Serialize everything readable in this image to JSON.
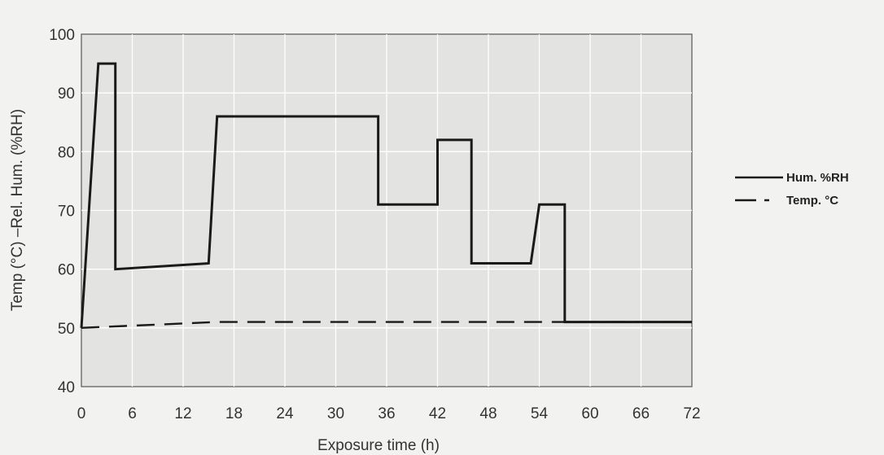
{
  "chart_data": {
    "type": "line",
    "title": "",
    "xlabel": "Exposure time (h)",
    "ylabel": "Temp (°C) –Rel. Hum. (%RH)",
    "xlim": [
      0,
      72
    ],
    "ylim": [
      40,
      100
    ],
    "xticks": [
      0,
      6,
      12,
      18,
      24,
      30,
      36,
      42,
      48,
      54,
      60,
      66,
      72
    ],
    "yticks": [
      40,
      50,
      60,
      70,
      80,
      90,
      100
    ],
    "x_tick_labels": [
      "0",
      "6",
      "12",
      "18",
      "24",
      "30",
      "36",
      "42",
      "48",
      "54",
      "60",
      "66",
      "72"
    ],
    "y_tick_labels": [
      "40",
      "50",
      "60",
      "70",
      "80",
      "90",
      "100"
    ],
    "grid": true,
    "legend_position": "right",
    "series": [
      {
        "name": "Hum. %RH",
        "style": "solid",
        "color": "#1a1a1a",
        "points": [
          [
            0,
            50
          ],
          [
            2,
            95
          ],
          [
            4,
            95
          ],
          [
            4,
            60
          ],
          [
            15,
            61
          ],
          [
            16,
            86
          ],
          [
            35,
            86
          ],
          [
            35,
            71
          ],
          [
            42,
            71
          ],
          [
            42,
            82
          ],
          [
            44,
            82
          ],
          [
            46,
            82
          ],
          [
            46,
            61
          ],
          [
            53,
            61
          ],
          [
            54,
            71
          ],
          [
            57,
            71
          ],
          [
            57,
            51
          ],
          [
            72,
            51
          ]
        ]
      },
      {
        "name": "Temp. °C",
        "style": "dashed",
        "color": "#1a1a1a",
        "points": [
          [
            0,
            50
          ],
          [
            16,
            51
          ],
          [
            72,
            51
          ]
        ]
      }
    ]
  },
  "colors": {
    "plot_background": "#e3e3e1",
    "page_background": "#f2f2f0",
    "gridline": "#ffffff"
  }
}
